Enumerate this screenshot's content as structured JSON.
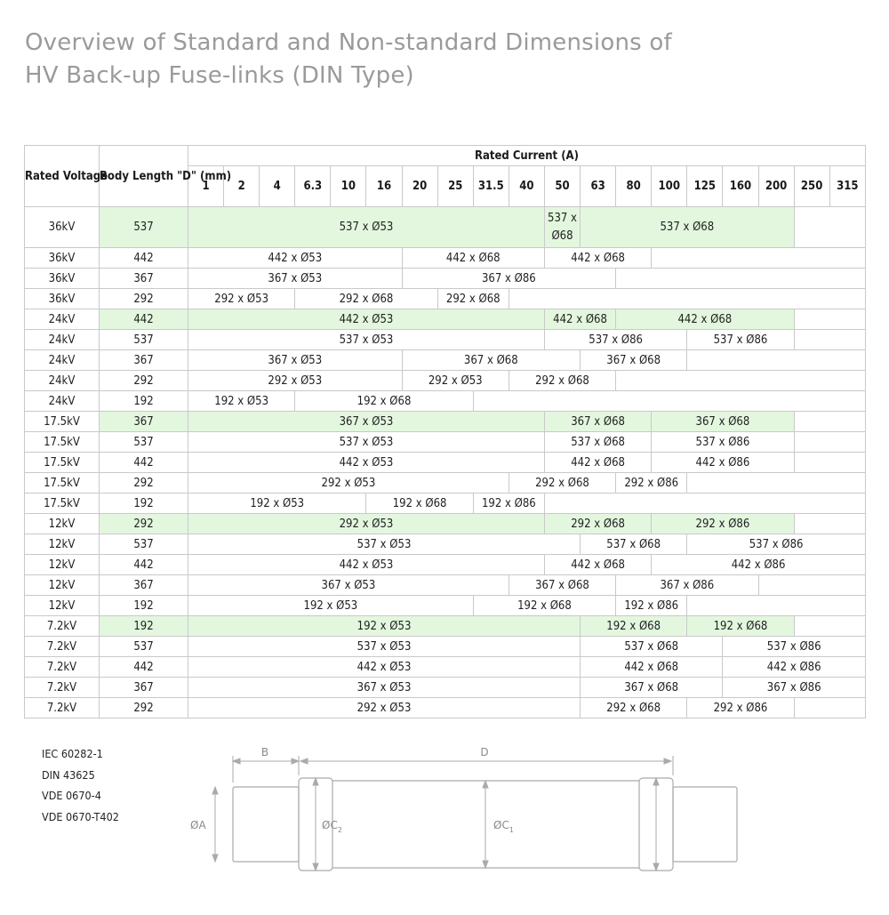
{
  "title": {
    "line1": "Overview of Standard and Non-standard Dimensions of",
    "line2": "HV Back-up Fuse-links (DIN Type)"
  },
  "table": {
    "group_header": "Rated Current (A)",
    "col_rated_voltage": "Rated Voltage",
    "col_body_length": "Body Length \"D\" (mm)",
    "currents": [
      "1",
      "2",
      "4",
      "6.3",
      "10",
      "16",
      "20",
      "25",
      "31.5",
      "40",
      "50",
      "63",
      "80",
      "100",
      "125",
      "160",
      "200",
      "250",
      "315"
    ],
    "rows": [
      {
        "voltage": "36kV",
        "length": "537",
        "highlight": true,
        "tall": true,
        "segments": [
          {
            "span": 10,
            "text": "537 x Ø53"
          },
          {
            "span": 1,
            "text": "537 x Ø68"
          },
          {
            "span": 6,
            "text": "537 x Ø68"
          },
          {
            "span": 2,
            "text": "",
            "blank": true
          }
        ]
      },
      {
        "voltage": "36kV",
        "length": "442",
        "segments": [
          {
            "span": 6,
            "text": "442 x Ø53"
          },
          {
            "span": 4,
            "text": "442 x Ø68"
          },
          {
            "span": 3,
            "text": "442 x Ø68"
          },
          {
            "span": 6,
            "text": "",
            "blank": true
          }
        ]
      },
      {
        "voltage": "36kV",
        "length": "367",
        "segments": [
          {
            "span": 6,
            "text": "367 x Ø53"
          },
          {
            "span": 6,
            "text": "367 x Ø86"
          },
          {
            "span": 7,
            "text": "",
            "blank": true
          }
        ]
      },
      {
        "voltage": "36kV",
        "length": "292",
        "segments": [
          {
            "span": 3,
            "text": "292 x Ø53"
          },
          {
            "span": 4,
            "text": "292 x Ø68"
          },
          {
            "span": 2,
            "text": "292 x Ø68"
          },
          {
            "span": 10,
            "text": "",
            "blank": true
          }
        ]
      },
      {
        "voltage": "24kV",
        "length": "442",
        "highlight": true,
        "segments": [
          {
            "span": 10,
            "text": "442 x Ø53"
          },
          {
            "span": 2,
            "text": "442 x Ø68"
          },
          {
            "span": 5,
            "text": "442 x Ø68"
          },
          {
            "span": 2,
            "text": "",
            "blank": true
          }
        ]
      },
      {
        "voltage": "24kV",
        "length": "537",
        "segments": [
          {
            "span": 10,
            "text": "537 x Ø53"
          },
          {
            "span": 4,
            "text": "537 x Ø86"
          },
          {
            "span": 3,
            "text": "537 x Ø86"
          },
          {
            "span": 2,
            "text": "",
            "blank": true
          }
        ]
      },
      {
        "voltage": "24kV",
        "length": "367",
        "segments": [
          {
            "span": 6,
            "text": "367 x Ø53"
          },
          {
            "span": 5,
            "text": "367 x Ø68"
          },
          {
            "span": 3,
            "text": "367 x Ø68"
          },
          {
            "span": 5,
            "text": "",
            "blank": true
          }
        ]
      },
      {
        "voltage": "24kV",
        "length": "292",
        "segments": [
          {
            "span": 6,
            "text": "292 x Ø53"
          },
          {
            "span": 3,
            "text": "292 x Ø53"
          },
          {
            "span": 3,
            "text": "292 x Ø68"
          },
          {
            "span": 7,
            "text": "",
            "blank": true
          }
        ]
      },
      {
        "voltage": "24kV",
        "length": "192",
        "segments": [
          {
            "span": 3,
            "text": "192 x Ø53"
          },
          {
            "span": 5,
            "text": "192 x Ø68"
          },
          {
            "span": 11,
            "text": "",
            "blank": true
          }
        ]
      },
      {
        "voltage": "17.5kV",
        "length": "367",
        "highlight": true,
        "segments": [
          {
            "span": 10,
            "text": "367 x Ø53"
          },
          {
            "span": 3,
            "text": "367 x Ø68"
          },
          {
            "span": 4,
            "text": "367 x Ø68"
          },
          {
            "span": 2,
            "text": "",
            "blank": true
          }
        ]
      },
      {
        "voltage": "17.5kV",
        "length": "537",
        "segments": [
          {
            "span": 10,
            "text": "537 x Ø53"
          },
          {
            "span": 3,
            "text": "537 x Ø68"
          },
          {
            "span": 4,
            "text": "537 x Ø86"
          },
          {
            "span": 2,
            "text": "",
            "blank": true
          }
        ]
      },
      {
        "voltage": "17.5kV",
        "length": "442",
        "segments": [
          {
            "span": 10,
            "text": "442 x Ø53"
          },
          {
            "span": 3,
            "text": "442 x Ø68"
          },
          {
            "span": 4,
            "text": "442 x Ø86"
          },
          {
            "span": 2,
            "text": "",
            "blank": true
          }
        ]
      },
      {
        "voltage": "17.5kV",
        "length": "292",
        "segments": [
          {
            "span": 9,
            "text": "292 x Ø53"
          },
          {
            "span": 3,
            "text": "292 x Ø68"
          },
          {
            "span": 2,
            "text": "292 x Ø86"
          },
          {
            "span": 5,
            "text": "",
            "blank": true
          }
        ]
      },
      {
        "voltage": "17.5kV",
        "length": "192",
        "segments": [
          {
            "span": 5,
            "text": "192 x Ø53"
          },
          {
            "span": 3,
            "text": "192 x Ø68"
          },
          {
            "span": 2,
            "text": "192 x Ø86"
          },
          {
            "span": 9,
            "text": "",
            "blank": true
          }
        ]
      },
      {
        "voltage": "12kV",
        "length": "292",
        "highlight": true,
        "segments": [
          {
            "span": 10,
            "text": "292 x Ø53"
          },
          {
            "span": 3,
            "text": "292 x Ø68"
          },
          {
            "span": 4,
            "text": "292 x Ø86"
          },
          {
            "span": 2,
            "text": "",
            "blank": true
          }
        ]
      },
      {
        "voltage": "12kV",
        "length": "537",
        "segments": [
          {
            "span": 11,
            "text": "537 x Ø53"
          },
          {
            "span": 3,
            "text": "537 x Ø68"
          },
          {
            "span": 5,
            "text": "537 x Ø86"
          }
        ]
      },
      {
        "voltage": "12kV",
        "length": "442",
        "segments": [
          {
            "span": 10,
            "text": "442 x Ø53"
          },
          {
            "span": 3,
            "text": "442 x Ø68"
          },
          {
            "span": 6,
            "text": "442 x Ø86"
          }
        ]
      },
      {
        "voltage": "12kV",
        "length": "367",
        "segments": [
          {
            "span": 9,
            "text": "367 x Ø53"
          },
          {
            "span": 3,
            "text": "367 x Ø68"
          },
          {
            "span": 4,
            "text": "367 x Ø86"
          },
          {
            "span": 3,
            "text": "",
            "blank": true
          }
        ]
      },
      {
        "voltage": "12kV",
        "length": "192",
        "segments": [
          {
            "span": 8,
            "text": "192 x Ø53"
          },
          {
            "span": 4,
            "text": "192 x Ø68"
          },
          {
            "span": 2,
            "text": "192 x Ø86"
          },
          {
            "span": 5,
            "text": "",
            "blank": true
          }
        ]
      },
      {
        "voltage": "7.2kV",
        "length": "192",
        "highlight": true,
        "segments": [
          {
            "span": 11,
            "text": "192 x Ø53"
          },
          {
            "span": 3,
            "text": "192 x Ø68"
          },
          {
            "span": 3,
            "text": "192 x Ø68"
          },
          {
            "span": 2,
            "text": "",
            "blank": true
          }
        ]
      },
      {
        "voltage": "7.2kV",
        "length": "537",
        "segments": [
          {
            "span": 11,
            "text": "537 x Ø53"
          },
          {
            "span": 4,
            "text": "537 x Ø68"
          },
          {
            "span": 4,
            "text": "537 x Ø86"
          }
        ]
      },
      {
        "voltage": "7.2kV",
        "length": "442",
        "segments": [
          {
            "span": 11,
            "text": "442 x Ø53"
          },
          {
            "span": 4,
            "text": "442 x Ø68"
          },
          {
            "span": 4,
            "text": "442 x Ø86"
          }
        ]
      },
      {
        "voltage": "7.2kV",
        "length": "367",
        "segments": [
          {
            "span": 11,
            "text": "367 x Ø53"
          },
          {
            "span": 4,
            "text": "367 x Ø68"
          },
          {
            "span": 4,
            "text": "367 x Ø86"
          }
        ]
      },
      {
        "voltage": "7.2kV",
        "length": "292",
        "segments": [
          {
            "span": 11,
            "text": "292 x Ø53"
          },
          {
            "span": 3,
            "text": "292 x Ø68"
          },
          {
            "span": 3,
            "text": "292 x Ø86"
          },
          {
            "span": 2,
            "text": "",
            "blank": true
          }
        ]
      }
    ]
  },
  "standards": [
    "IEC 60282-1",
    "DIN 43625",
    "VDE 0670-4",
    "VDE 0670-T402"
  ],
  "diagram": {
    "label_b": "B",
    "label_d": "D",
    "label_a": "ØA",
    "label_c2": "ØC",
    "label_c2_sub": "2",
    "label_c1": "ØC",
    "label_c1_sub": "1"
  },
  "colors": {
    "highlight": "#e3f7df",
    "title": "#9a9a9a",
    "grid": "#c9c9c9",
    "diagram_line": "#aaaaaa"
  }
}
